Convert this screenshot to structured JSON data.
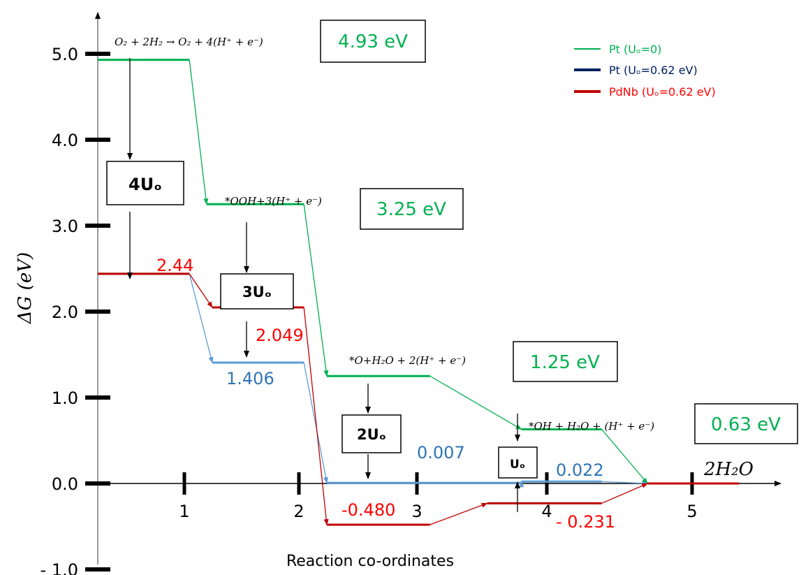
{
  "chart_data": {
    "type": "line",
    "xlabel": "Reaction co-ordinates",
    "ylabel": "ΔG (eV)",
    "xlim": [
      0,
      5.8
    ],
    "ylim": [
      -1.0,
      5.0
    ],
    "x_ticks": [
      "1",
      "2",
      "3",
      "4",
      "5"
    ],
    "y_ticks": [
      "- 1.0",
      "0.0",
      "1.0",
      "2.0",
      "3.0",
      "4.0",
      "5.0"
    ],
    "legend_position": "top-right",
    "legend": [
      {
        "text": "Pt (Uₒ=0)",
        "color": "#00b050"
      },
      {
        "text": "Pt (Uₒ=0.62 eV)",
        "color": "#002060"
      },
      {
        "text": "PdNb (Uₒ=0.62 eV)",
        "color": "#ff0000"
      }
    ],
    "series": [
      {
        "name": "Pt (Uₒ=0)",
        "color": "#00b050",
        "levels": [
          {
            "x_start": 0.0,
            "x_end": 0.8,
            "y": 4.93
          },
          {
            "x_start": 0.95,
            "x_end": 1.8,
            "y": 3.25
          },
          {
            "x_start": 2.0,
            "x_end": 2.9,
            "y": 1.25
          },
          {
            "x_start": 3.7,
            "x_end": 4.4,
            "y": 0.63
          },
          {
            "x_start": 4.8,
            "x_end": 5.6,
            "y": 0.0
          }
        ]
      },
      {
        "name": "Pt (Uₒ=0.62 eV)",
        "color": "#5b9bd5",
        "levels": [
          {
            "x_start": 0.0,
            "x_end": 0.8,
            "y": 2.44
          },
          {
            "x_start": 1.0,
            "x_end": 1.8,
            "y": 1.406
          },
          {
            "x_start": 2.0,
            "x_end": 3.7,
            "y": 0.007
          },
          {
            "x_start": 3.7,
            "x_end": 4.4,
            "y": 0.022
          },
          {
            "x_start": 4.8,
            "x_end": 5.6,
            "y": 0.0
          }
        ]
      },
      {
        "name": "PdNb (Uₒ=0.62 eV)",
        "color": "#c00000",
        "levels": [
          {
            "x_start": 0.0,
            "x_end": 0.8,
            "y": 2.44
          },
          {
            "x_start": 1.0,
            "x_end": 1.8,
            "y": 2.049
          },
          {
            "x_start": 2.0,
            "x_end": 2.9,
            "y": -0.48
          },
          {
            "x_start": 3.4,
            "x_end": 4.4,
            "y": -0.231
          },
          {
            "x_start": 4.8,
            "x_end": 5.6,
            "y": 0.0
          }
        ]
      }
    ],
    "data_labels": [
      {
        "text": "2.44",
        "x": 0.7,
        "y": 2.44,
        "color": "#ff0000"
      },
      {
        "text": "2.049",
        "x": 1.75,
        "y": 2.049,
        "color": "#ff0000"
      },
      {
        "text": "1.406",
        "x": 1.2,
        "y": 1.406,
        "color": "#2e75b6"
      },
      {
        "text": "0.007",
        "x": 2.8,
        "y": 0.007,
        "color": "#2e75b6"
      },
      {
        "text": "-0.480",
        "x": 2.2,
        "y": -0.48,
        "color": "#ff0000"
      },
      {
        "text": "0.022",
        "x": 3.9,
        "y": 0.022,
        "color": "#2e75b6"
      },
      {
        "text": "- 0.231",
        "x": 3.9,
        "y": -0.231,
        "color": "#ff0000"
      },
      {
        "text": "2H₂O",
        "x": 5.1,
        "y": 0.0,
        "color": "#000000"
      }
    ],
    "energy_boxes": [
      {
        "text": "4.93 eV",
        "color": "#00b050"
      },
      {
        "text": "3.25 eV",
        "color": "#00b050"
      },
      {
        "text": "1.25 eV",
        "color": "#00b050"
      },
      {
        "text": "0.63 eV",
        "color": "#00b050"
      }
    ],
    "potential_boxes": [
      "4Uₒ",
      "3Uₒ",
      "2Uₒ",
      "Uₒ"
    ],
    "step_equations": [
      "O₂ + 2H₂ → O₂ + 4(H⁺ + e⁻)",
      "*OOH+3(H⁺ + e⁻)",
      "*O+H₂O + 2(H⁺ + e⁻)",
      "*OH + H₂O + (H⁺ + e⁻)"
    ]
  }
}
